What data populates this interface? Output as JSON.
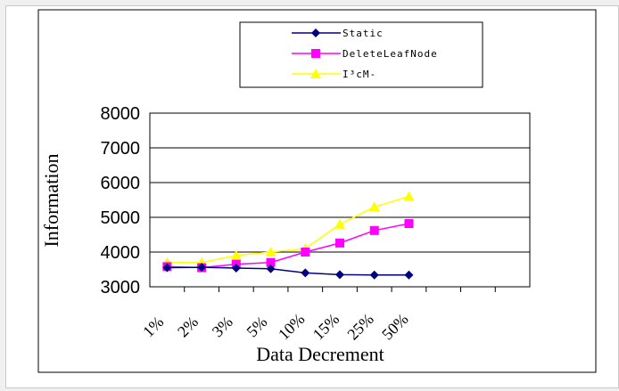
{
  "chart_data": {
    "type": "line",
    "title": "",
    "xlabel": "Data Decrement",
    "ylabel": "Information",
    "categories": [
      "1%",
      "2%",
      "3%",
      "5%",
      "10%",
      "15%",
      "25%",
      "50%"
    ],
    "yticks": [
      "8000",
      "7000",
      "6000",
      "5000",
      "4000",
      "3000"
    ],
    "ylim": [
      3000,
      8000
    ],
    "grid": "horizontal",
    "legend_position": "top",
    "series": [
      {
        "name": "Static",
        "color": "#000080",
        "marker": "diamond",
        "values": [
          3550,
          3560,
          3540,
          3520,
          3400,
          3350,
          3340,
          3340
        ]
      },
      {
        "name": "DeleteLeafNode",
        "color": "#ff00ff",
        "marker": "square",
        "values": [
          3580,
          3550,
          3650,
          3700,
          4000,
          4260,
          4620,
          4820
        ]
      },
      {
        "name": "I³cM-",
        "color": "#ffff00",
        "marker": "triangle",
        "values": [
          3700,
          3700,
          3900,
          4000,
          4100,
          4800,
          5300,
          5600
        ]
      }
    ]
  }
}
